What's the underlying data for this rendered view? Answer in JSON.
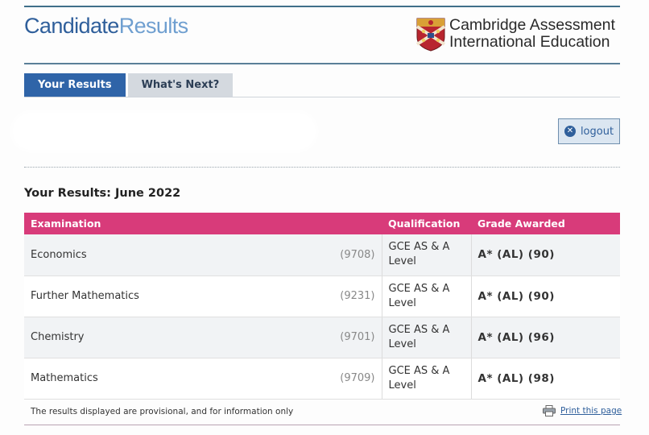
{
  "header": {
    "brand_part1": "Candidate",
    "brand_part2": "Results",
    "org_line1": "Cambridge Assessment",
    "org_line2": "International Education"
  },
  "tabs": [
    {
      "label": "Your Results",
      "active": true
    },
    {
      "label": "What's Next?",
      "active": false
    }
  ],
  "logout": {
    "label": "logout",
    "icon": "close-circle-icon"
  },
  "results": {
    "title": "Your Results: June 2022",
    "columns": [
      "Examination",
      "Qualification",
      "Grade Awarded"
    ],
    "rows": [
      {
        "exam": "Economics",
        "code": "(9708)",
        "qualification": "GCE AS & A Level",
        "grade": "A* (AL) (90)"
      },
      {
        "exam": "Further Mathematics",
        "code": "(9231)",
        "qualification": "GCE AS & A Level",
        "grade": "A* (AL) (90)"
      },
      {
        "exam": "Chemistry",
        "code": "(9701)",
        "qualification": "GCE AS & A Level",
        "grade": "A* (AL) (96)"
      },
      {
        "exam": "Mathematics",
        "code": "(9709)",
        "qualification": "GCE AS & A Level",
        "grade": "A* (AL) (98)"
      }
    ]
  },
  "footer": {
    "note": "The results displayed are provisional, and for information only",
    "print_label": "Print this page"
  },
  "colors": {
    "brand_dark": "#2f5f9b",
    "brand_light": "#6f9fd0",
    "table_header": "#d83b7a",
    "tab_active": "#2f64a8"
  }
}
